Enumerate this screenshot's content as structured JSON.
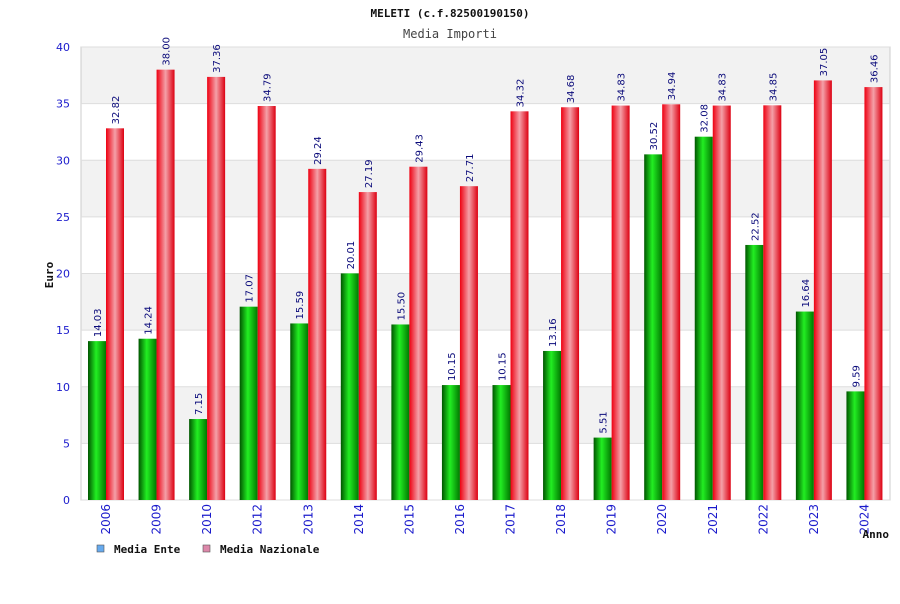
{
  "chart_data": {
    "type": "bar",
    "title": "MELETI (c.f.82500190150)",
    "subtitle": "Media Importi",
    "xlabel": "Anno",
    "ylabel": "Euro",
    "ylim": [
      0,
      40
    ],
    "yticks": [
      0,
      5,
      10,
      15,
      20,
      25,
      30,
      35,
      40
    ],
    "grid": true,
    "legend_position": "bottom-left",
    "categories": [
      "2006",
      "2009",
      "2010",
      "2012",
      "2013",
      "2014",
      "2015",
      "2016",
      "2017",
      "2018",
      "2019",
      "2020",
      "2021",
      "2022",
      "2023",
      "2024"
    ],
    "series": [
      {
        "name": "Media Ente",
        "color": "#00cc00",
        "legend_color": "#66aaee",
        "values": [
          14.03,
          14.24,
          7.15,
          17.07,
          15.59,
          20.01,
          15.5,
          10.15,
          10.15,
          13.16,
          5.51,
          30.52,
          32.08,
          22.52,
          16.64,
          9.59
        ],
        "labels": [
          "14.03",
          "14.24",
          "7.15",
          "17.07",
          "15.59",
          "20.01",
          "15.50",
          "10.15",
          "10.15",
          "13.16",
          "5.51",
          "30.52",
          "32.08",
          "22.52",
          "16.64",
          "9.59"
        ]
      },
      {
        "name": "Media Nazionale",
        "color": "#ee1122",
        "legend_color": "#dd88aa",
        "values": [
          32.82,
          38.0,
          37.36,
          34.79,
          29.24,
          27.19,
          29.43,
          27.71,
          34.32,
          34.68,
          34.83,
          34.94,
          34.83,
          34.85,
          37.05,
          36.46
        ],
        "labels": [
          "32.82",
          "38.00",
          "37.36",
          "34.79",
          "29.24",
          "27.19",
          "29.43",
          "27.71",
          "34.32",
          "34.68",
          "34.83",
          "34.94",
          "34.83",
          "34.85",
          "37.05",
          "36.46"
        ]
      }
    ]
  }
}
